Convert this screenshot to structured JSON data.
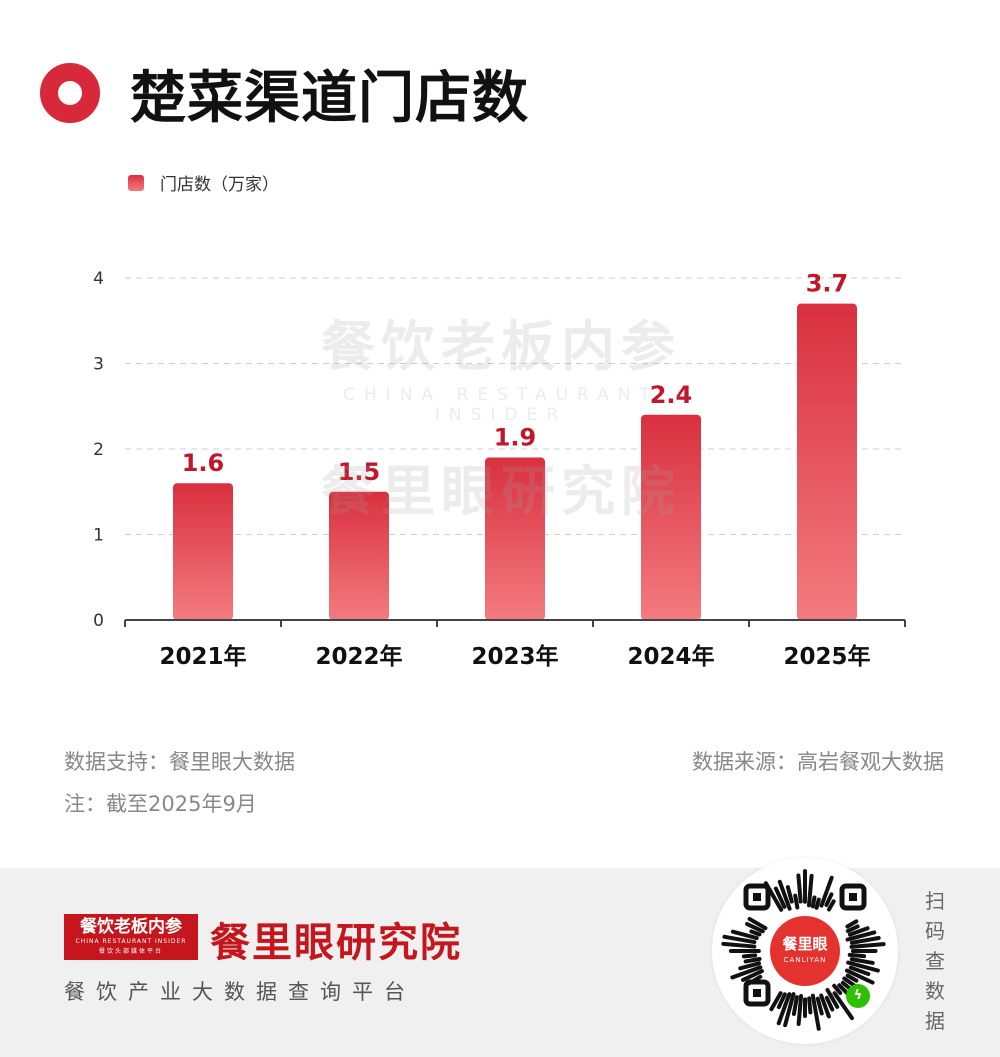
{
  "header": {
    "title": "楚菜渠道门店数"
  },
  "legend": {
    "label": "门店数（万家）"
  },
  "watermark": {
    "line1": "餐饮老板内参",
    "line2": "CHINA RESTAURANT INSIDER",
    "line3": "餐里眼研究院"
  },
  "chart_data": {
    "type": "bar",
    "categories": [
      "2021年",
      "2022年",
      "2023年",
      "2024年",
      "2025年"
    ],
    "series": [
      {
        "name": "门店数（万家）",
        "values": [
          1.6,
          1.5,
          1.9,
          2.4,
          3.7
        ]
      }
    ],
    "data_labels": [
      "1.6",
      "1.5",
      "1.9",
      "2.4",
      "3.7"
    ],
    "ylim": [
      0,
      4
    ],
    "yticks": [
      0,
      1,
      2,
      3,
      4
    ],
    "grid": true,
    "legend_position": "top-left",
    "bar_color_top": "#d9303f",
    "bar_color_bottom": "#f37b7f",
    "label_color": "#c0182a"
  },
  "notes": {
    "data_support": "数据支持：餐里眼大数据",
    "data_source": "数据来源：高岩餐观大数据",
    "footnote": "注：截至2025年9月"
  },
  "footer": {
    "brand_box_cn": "餐饮老板内参",
    "brand_box_en": "CHINA RESTAURANT INSIDER",
    "brand_box_sub": "餐饮头部媒体平台",
    "brand_name": "餐里眼研究院",
    "tagline": "餐饮产业大数据查询平台",
    "qr_center_cn": "餐里眼",
    "qr_center_en": "CANLIYAN",
    "scan_text": "扫码查数据"
  },
  "colors": {
    "accent": "#d8293a",
    "brand_red": "#c4161c",
    "footer_bg": "#f0f0f0"
  },
  "icons": {
    "title_marker": "ring-icon",
    "qr": "qr-code-icon",
    "wechat": "wechat-mini-program-icon"
  }
}
